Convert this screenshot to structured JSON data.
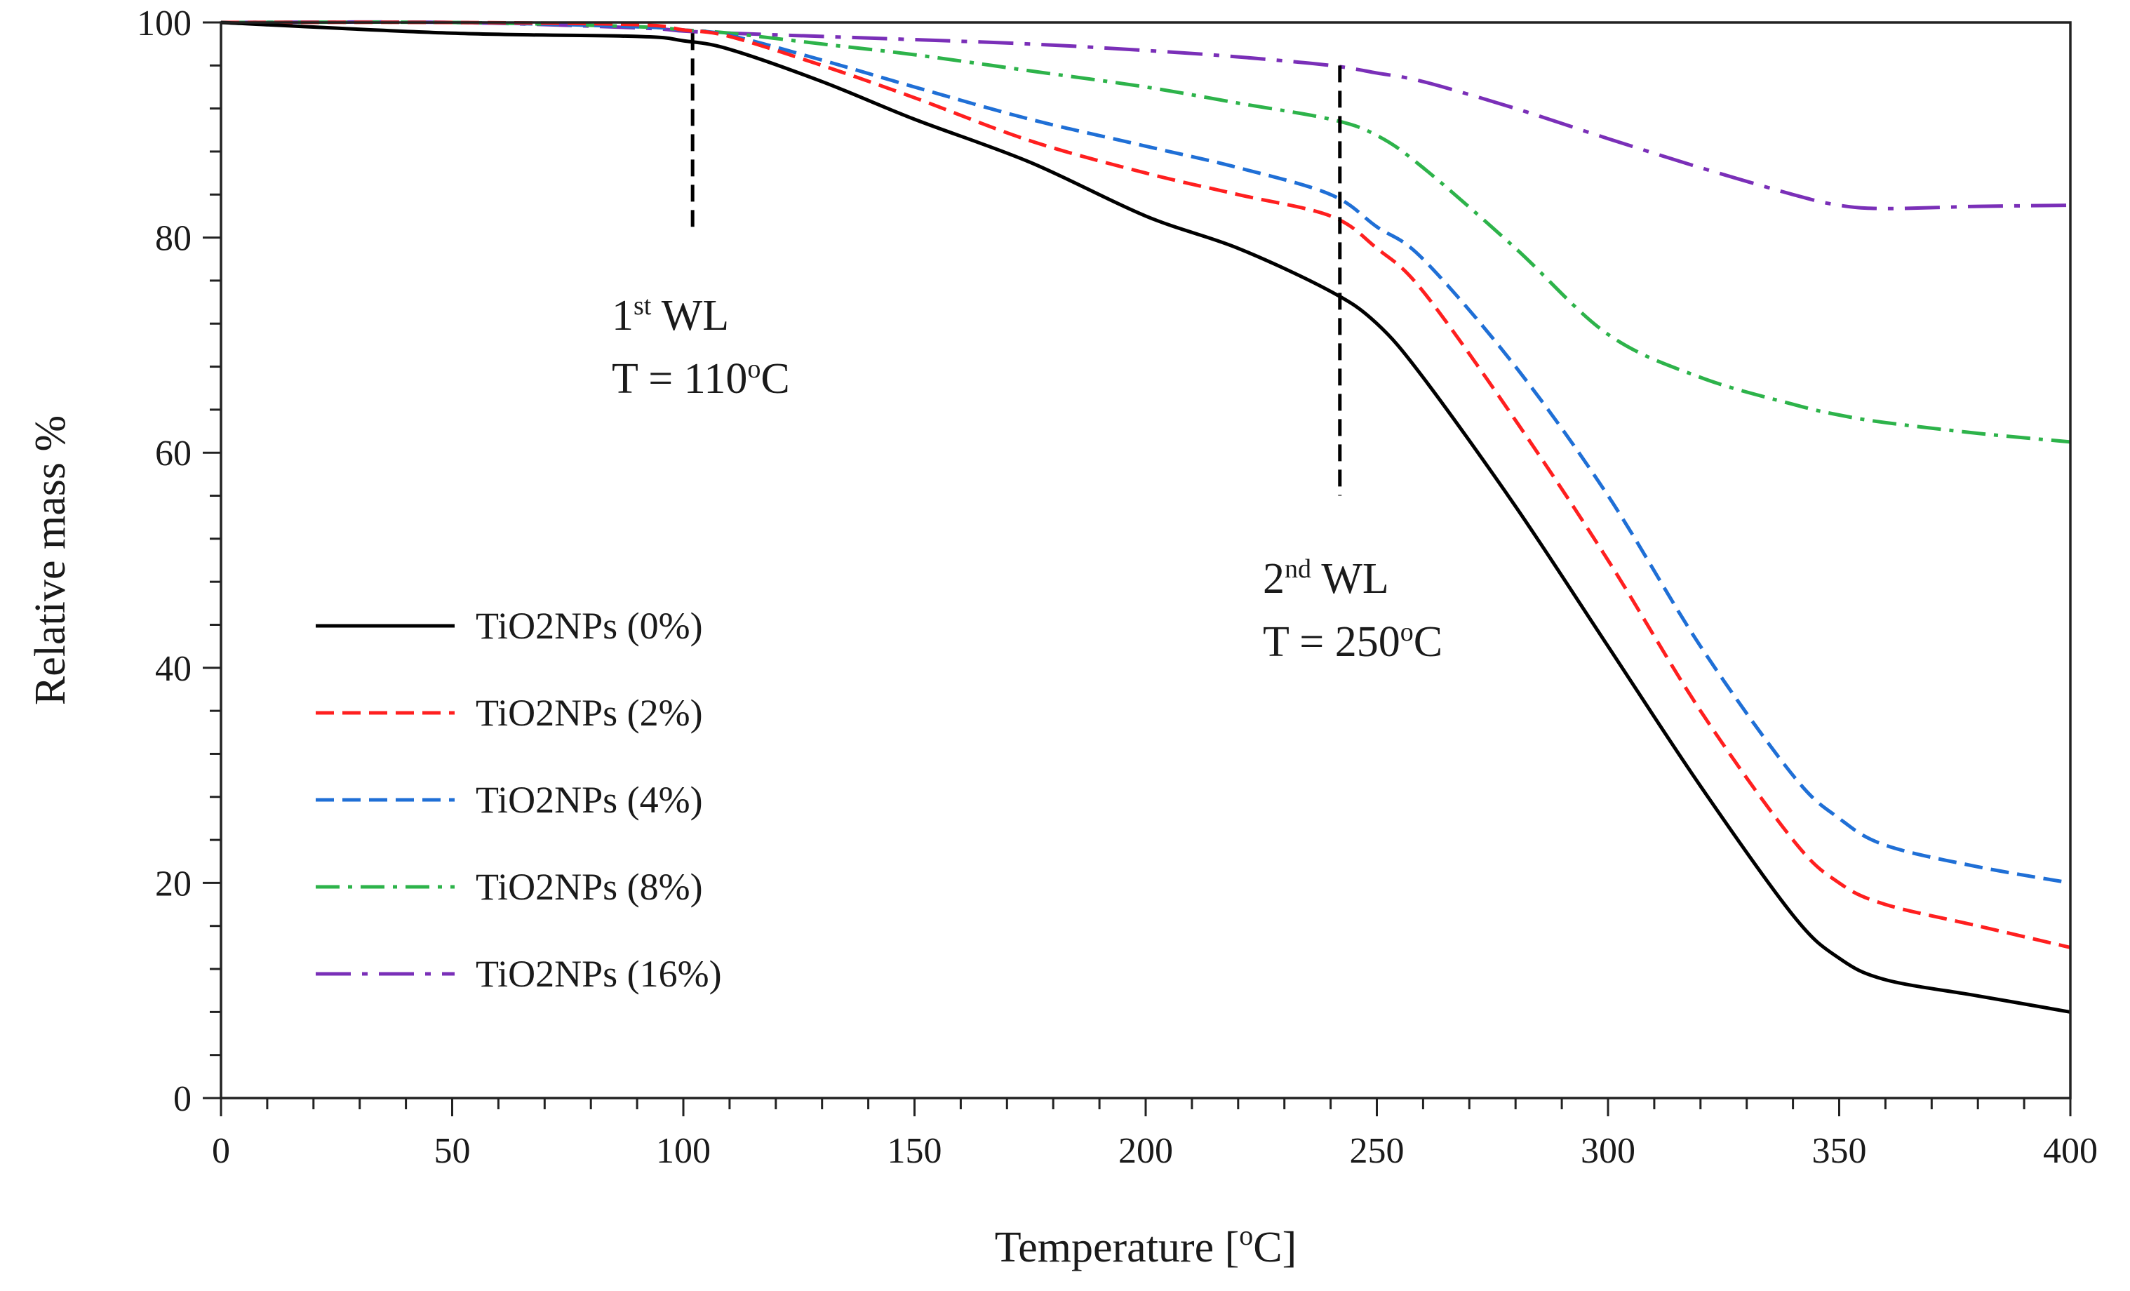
{
  "chart_data": {
    "type": "line",
    "xlabel": "Temperature [oC]",
    "xlabel_parts": {
      "pre": "Temperature [",
      "sup": "o",
      "post": "C]"
    },
    "ylabel": "Relative mass %",
    "xlim": [
      0,
      400
    ],
    "ylim": [
      0,
      100
    ],
    "x_ticks": [
      0,
      50,
      100,
      150,
      200,
      250,
      300,
      350,
      400
    ],
    "y_ticks": [
      0,
      20,
      40,
      60,
      80,
      100
    ],
    "x_tick_labels": [
      "0",
      "50",
      "100",
      "150",
      "200",
      "250",
      "300",
      "350",
      "400"
    ],
    "y_tick_labels": [
      "0",
      "20",
      "40",
      "60",
      "80",
      "100"
    ],
    "grid": false,
    "legend_position": "left-middle",
    "series": [
      {
        "name": "TiO2NPs (0%)",
        "color": "#000000",
        "dash": "solid",
        "x": [
          0,
          50,
          90,
          100,
          110,
          130,
          150,
          175,
          200,
          220,
          240,
          250,
          260,
          280,
          300,
          320,
          340,
          350,
          360,
          380,
          400
        ],
        "y": [
          100,
          99,
          98.7,
          98.3,
          97.5,
          94.5,
          91,
          87,
          82,
          79,
          75,
          72,
          67,
          55,
          42,
          29,
          17,
          13,
          11,
          9.5,
          8
        ]
      },
      {
        "name": "TiO2NPs (2%)",
        "color": "#ff1f1f",
        "dash": "dashed",
        "x": [
          0,
          50,
          90,
          100,
          110,
          130,
          150,
          175,
          200,
          220,
          240,
          250,
          260,
          280,
          300,
          320,
          340,
          350,
          360,
          380,
          400
        ],
        "y": [
          100,
          100,
          99.8,
          99.3,
          98.7,
          96,
          93,
          89,
          86,
          84,
          82,
          79,
          75,
          63,
          50,
          36,
          24,
          20,
          18,
          16,
          14
        ]
      },
      {
        "name": "TiO2NPs (4%)",
        "color": "#1f6fd6",
        "dash": "dashed",
        "x": [
          0,
          50,
          90,
          100,
          110,
          130,
          150,
          175,
          200,
          220,
          240,
          250,
          260,
          280,
          300,
          320,
          340,
          350,
          360,
          380,
          400
        ],
        "y": [
          100,
          100,
          99.6,
          99.3,
          98.8,
          96.5,
          94,
          91,
          88.5,
          86.5,
          84,
          81,
          78,
          68,
          56,
          42,
          30,
          26,
          23.5,
          21.5,
          20
        ]
      },
      {
        "name": "TiO2NPs (8%)",
        "color": "#2db34a",
        "dash": "dashdot",
        "x": [
          0,
          50,
          90,
          100,
          110,
          130,
          150,
          175,
          200,
          220,
          240,
          250,
          260,
          280,
          300,
          320,
          340,
          350,
          360,
          380,
          400
        ],
        "y": [
          100,
          100,
          99.6,
          99.3,
          99,
          98,
          97,
          95.5,
          94,
          92.5,
          91,
          89.5,
          86.5,
          79,
          71,
          67,
          64.5,
          63.5,
          62.8,
          61.8,
          61
        ]
      },
      {
        "name": "TiO2NPs (16%)",
        "color": "#7a2fb8",
        "dash": "longdashdot",
        "x": [
          0,
          50,
          90,
          100,
          110,
          130,
          150,
          175,
          200,
          220,
          240,
          250,
          260,
          280,
          300,
          320,
          340,
          350,
          360,
          380,
          400
        ],
        "y": [
          100,
          100,
          99.5,
          99.2,
          99,
          98.7,
          98.4,
          98,
          97.4,
          96.8,
          96,
          95.3,
          94.5,
          92,
          89.2,
          86.5,
          84,
          83,
          82.7,
          82.9,
          83
        ]
      }
    ],
    "annotations": [
      {
        "x": 102,
        "y_top": 99,
        "y_bottom": 81,
        "line1_pre": "1",
        "line1_sup": "st",
        "line1_post": " WL",
        "line2_pre": "T = 110",
        "line2_sup": "o",
        "line2_post": "C"
      },
      {
        "x": 242,
        "y_top": 96,
        "y_bottom": 56,
        "line1_pre": "2",
        "line1_sup": "nd",
        "line1_post": " WL",
        "line2_pre": "T = 250",
        "line2_sup": "o",
        "line2_post": "C"
      }
    ]
  }
}
